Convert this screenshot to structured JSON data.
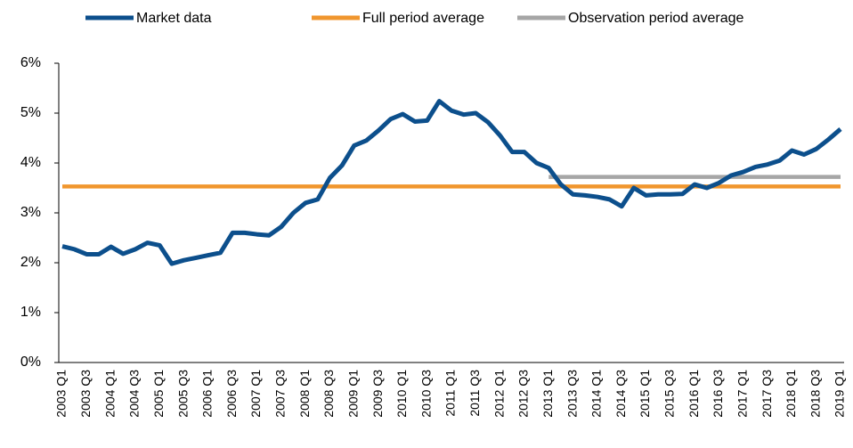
{
  "chart_data": {
    "type": "line",
    "categories": [
      "2003 Q1",
      null,
      "2003 Q3",
      null,
      "2004 Q1",
      null,
      "2004 Q3",
      null,
      "2005 Q1",
      null,
      "2005 Q3",
      null,
      "2006 Q1",
      null,
      "2006 Q3",
      null,
      "2007 Q1",
      null,
      "2007 Q3",
      null,
      "2008 Q1",
      null,
      "2008 Q3",
      null,
      "2009 Q1",
      null,
      "2009 Q3",
      null,
      "2010 Q1",
      null,
      "2010 Q3",
      null,
      "2011 Q1",
      null,
      "2011 Q3",
      null,
      "2012 Q1",
      null,
      "2012 Q3",
      null,
      "2013 Q1",
      null,
      "2013 Q3",
      null,
      "2014 Q1",
      null,
      "2014 Q3",
      null,
      "2015 Q1",
      null,
      "2015 Q3",
      null,
      "2016 Q1",
      null,
      "2016 Q3",
      null,
      "2017 Q1",
      null,
      "2017 Q3",
      null,
      "2018 Q1",
      null,
      "2018 Q3",
      null,
      "2019 Q1"
    ],
    "series": [
      {
        "name": "Market data",
        "color": "#0c4f8c",
        "values": [
          2.33,
          2.27,
          2.17,
          2.17,
          2.32,
          2.18,
          2.27,
          2.4,
          2.35,
          1.98,
          2.05,
          2.1,
          2.15,
          2.2,
          2.6,
          2.6,
          2.57,
          2.55,
          2.72,
          3.0,
          3.2,
          3.27,
          3.7,
          3.95,
          4.35,
          4.45,
          4.65,
          4.88,
          4.98,
          4.83,
          4.85,
          5.24,
          5.05,
          4.97,
          5.0,
          4.82,
          4.55,
          4.22,
          4.22,
          4.0,
          3.9,
          3.57,
          3.37,
          3.35,
          3.32,
          3.27,
          3.13,
          3.5,
          3.35,
          3.37,
          3.37,
          3.38,
          3.57,
          3.5,
          3.6,
          3.75,
          3.82,
          3.92,
          3.97,
          4.05,
          4.25,
          4.17,
          4.28,
          4.47,
          4.68
        ]
      },
      {
        "name": "Full period average",
        "color": "#f0962e",
        "values": [
          3.53,
          3.53,
          3.53,
          3.53,
          3.53,
          3.53,
          3.53,
          3.53,
          3.53,
          3.53,
          3.53,
          3.53,
          3.53,
          3.53,
          3.53,
          3.53,
          3.53,
          3.53,
          3.53,
          3.53,
          3.53,
          3.53,
          3.53,
          3.53,
          3.53,
          3.53,
          3.53,
          3.53,
          3.53,
          3.53,
          3.53,
          3.53,
          3.53,
          3.53,
          3.53,
          3.53,
          3.53,
          3.53,
          3.53,
          3.53,
          3.53,
          3.53,
          3.53,
          3.53,
          3.53,
          3.53,
          3.53,
          3.53,
          3.53,
          3.53,
          3.53,
          3.53,
          3.53,
          3.53,
          3.53,
          3.53,
          3.53,
          3.53,
          3.53,
          3.53,
          3.53,
          3.53,
          3.53,
          3.53,
          3.53
        ]
      },
      {
        "name": "Observation period average",
        "color": "#a6a6a6",
        "values": [
          null,
          null,
          null,
          null,
          null,
          null,
          null,
          null,
          null,
          null,
          null,
          null,
          null,
          null,
          null,
          null,
          null,
          null,
          null,
          null,
          null,
          null,
          null,
          null,
          null,
          null,
          null,
          null,
          null,
          null,
          null,
          null,
          null,
          null,
          null,
          null,
          null,
          null,
          null,
          null,
          3.72,
          3.72,
          3.72,
          3.72,
          3.72,
          3.72,
          3.72,
          3.72,
          3.72,
          3.72,
          3.72,
          3.72,
          3.72,
          3.72,
          3.72,
          3.72,
          3.72,
          3.72,
          3.72,
          3.72,
          3.72,
          3.72,
          3.72,
          3.72,
          3.72
        ]
      }
    ],
    "ylim": [
      0,
      6
    ],
    "yticks": [
      {
        "value": 0,
        "label": "0%"
      },
      {
        "value": 1,
        "label": "1%"
      },
      {
        "value": 2,
        "label": "2%"
      },
      {
        "value": 3,
        "label": "3%"
      },
      {
        "value": 4,
        "label": "4%"
      },
      {
        "value": 5,
        "label": "5%"
      },
      {
        "value": 6,
        "label": "6%"
      }
    ],
    "grid": false,
    "legend": "top"
  }
}
